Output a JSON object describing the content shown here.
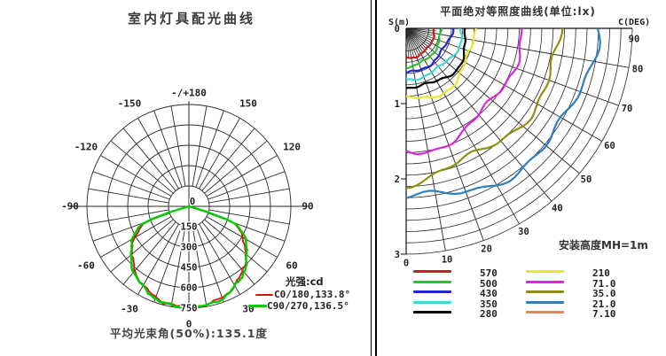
{
  "left_panel": {
    "title": "室内灯具配光曲线",
    "caption": "平均光束角(50%):135.1度",
    "legend": {
      "title": "光强:cd",
      "items": [
        {
          "label": "C0/180,133.8°",
          "color": "#dd1111"
        },
        {
          "label": "C90/270,136.5°",
          "color": "#00cc00"
        }
      ]
    },
    "chart_data": {
      "type": "line",
      "subtype": "polar-intensity",
      "unit": "cd",
      "rmax": 750,
      "radial_ticks": [
        0,
        150,
        300,
        450,
        600,
        750
      ],
      "angle_labels": [
        {
          "angle": 0,
          "label": "0"
        },
        {
          "angle": 30,
          "label": "30"
        },
        {
          "angle": -30,
          "label": "-30"
        },
        {
          "angle": 60,
          "label": "60"
        },
        {
          "angle": -60,
          "label": "-60"
        },
        {
          "angle": 90,
          "label": "90"
        },
        {
          "angle": -90,
          "label": "-90"
        },
        {
          "angle": 120,
          "label": "120"
        },
        {
          "angle": -120,
          "label": "-120"
        },
        {
          "angle": 150,
          "label": "150"
        },
        {
          "angle": -150,
          "label": "-150"
        },
        {
          "angle": 180,
          "label": "-/+180"
        }
      ],
      "series": [
        {
          "name": "C0/180",
          "beam_angle_deg": 133.8,
          "color": "#dd1111",
          "angles_deg": [
            0,
            5,
            10,
            15,
            20,
            25,
            30,
            35,
            40,
            45,
            50,
            55,
            60,
            65,
            70,
            75
          ],
          "values_cd": [
            745,
            741,
            736,
            728,
            712,
            696,
            673,
            648,
            617,
            583,
            546,
            504,
            458,
            407,
            350,
            0
          ]
        },
        {
          "name": "C90/270",
          "beam_angle_deg": 136.5,
          "color": "#00cc00",
          "angles_deg": [
            0,
            5,
            10,
            15,
            20,
            25,
            30,
            35,
            40,
            45,
            50,
            55,
            60,
            65,
            70,
            75
          ],
          "values_cd": [
            750,
            746,
            742,
            733,
            719,
            702,
            681,
            657,
            628,
            596,
            559,
            519,
            474,
            424,
            368,
            0
          ]
        }
      ]
    }
  },
  "right_panel": {
    "title": "平面绝对等照度曲线(单位:lx)",
    "axis_left_label": "S(m)",
    "axis_right_label": "C(DEG)",
    "note": "安装高度MH=1m",
    "chart_data": {
      "type": "line",
      "subtype": "isolux-fan",
      "unit": "lx",
      "s_ticks_m": [
        0,
        1,
        2,
        3
      ],
      "s_max_m": 3,
      "c_ticks_deg": [
        0,
        10,
        20,
        30,
        40,
        50,
        60,
        70,
        80,
        90
      ],
      "grid_arc_step_m": 0.15,
      "mounting_height_m": 1,
      "curves": [
        {
          "lux": "570",
          "color": "#c42020",
          "r0_m": 0.38
        },
        {
          "lux": "500",
          "color": "#2fbf2f",
          "r0_m": 0.49
        },
        {
          "lux": "430",
          "color": "#2424d8",
          "r0_m": 0.59
        },
        {
          "lux": "350",
          "color": "#3fd8d8",
          "r0_m": 0.7
        },
        {
          "lux": "280",
          "color": "#000000",
          "r0_m": 0.81
        },
        {
          "lux": "210",
          "color": "#e8e832",
          "r0_m": 0.93
        },
        {
          "lux": "71.0",
          "color": "#dc26dc",
          "r0_m": 1.56
        },
        {
          "lux": "35.0",
          "color": "#8f8f14",
          "r0_m": 2.02
        },
        {
          "lux": "21.0",
          "color": "#2d7ec2",
          "r0_m": 2.39
        },
        {
          "lux": "7.10",
          "color": "#d98a5f",
          "r0_m": 3.3,
          "offchart": true
        }
      ]
    }
  }
}
